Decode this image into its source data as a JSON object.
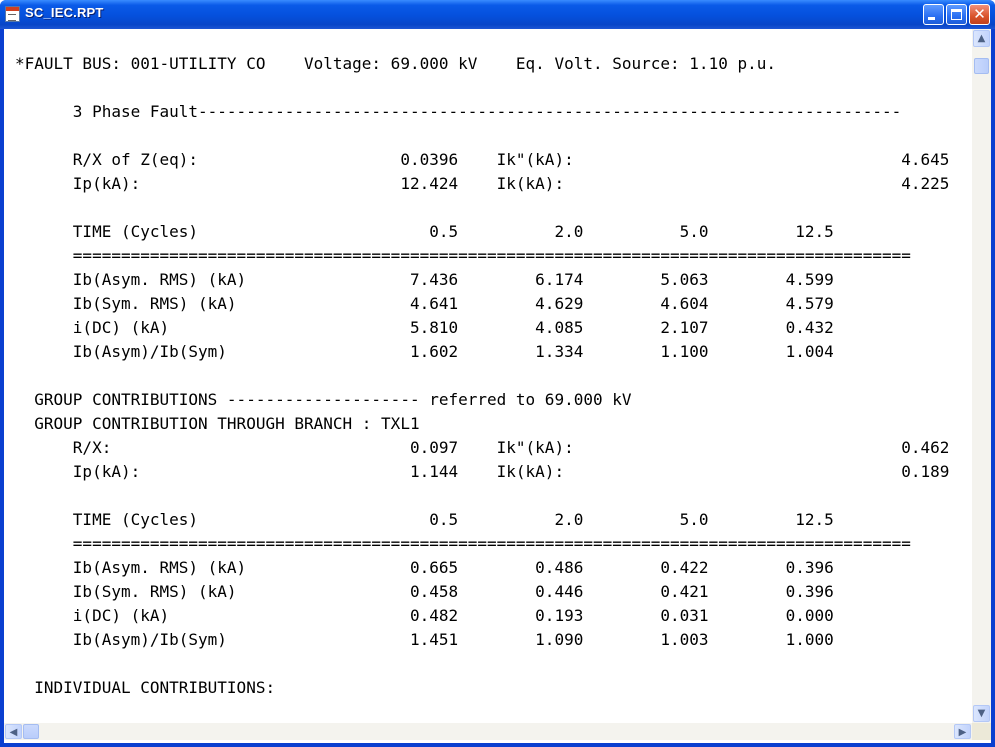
{
  "window": {
    "title": "SC_IEC.RPT",
    "icon": "notepad-icon",
    "buttons": {
      "minimize": "minimize-icon",
      "maximize": "maximize-icon",
      "close": "close-icon",
      "close_glyph": "✕"
    }
  },
  "report": {
    "lines": [
      "*FAULT BUS: 001-UTILITY CO    Voltage: 69.000 kV    Eq. Volt. Source: 1.10 p.u.",
      "",
      "      3 Phase Fault-------------------------------------------------------------------------",
      "",
      "      R/X of Z(eq):                     0.0396    Ik\"(kA):                                  4.645",
      "      Ip(kA):                           12.424    Ik(kA):                                   4.225",
      "",
      "      TIME (Cycles)                        0.5          2.0          5.0         12.5",
      "      =======================================================================================",
      "      Ib(Asym. RMS) (kA)                 7.436        6.174        5.063        4.599",
      "      Ib(Sym. RMS) (kA)                  4.641        4.629        4.604        4.579",
      "      i(DC) (kA)                         5.810        4.085        2.107        0.432",
      "      Ib(Asym)/Ib(Sym)                   1.602        1.334        1.100        1.004",
      "",
      "  GROUP CONTRIBUTIONS -------------------- referred to 69.000 kV",
      "  GROUP CONTRIBUTION THROUGH BRANCH : TXL1",
      "      R/X:                               0.097    Ik\"(kA):                                  0.462",
      "      Ip(kA):                            1.144    Ik(kA):                                   0.189",
      "",
      "      TIME (Cycles)                        0.5          2.0          5.0         12.5",
      "      =======================================================================================",
      "      Ib(Asym. RMS) (kA)                 0.665        0.486        0.422        0.396",
      "      Ib(Sym. RMS) (kA)                  0.458        0.446        0.421        0.396",
      "      i(DC) (kA)                         0.482        0.193        0.031        0.000",
      "      Ib(Asym)/Ib(Sym)                   1.451        1.090        1.003        1.000",
      "",
      "  INDIVIDUAL CONTRIBUTIONS:"
    ]
  },
  "scrollbars": {
    "vertical": {
      "up": "scroll-up-arrow-icon",
      "down": "scroll-down-arrow-icon",
      "position": 0.0,
      "up_glyph": "▲",
      "down_glyph": "▼"
    },
    "horizontal": {
      "left": "scroll-left-arrow-icon",
      "right": "scroll-right-arrow-icon",
      "position": 0.0,
      "left_glyph": "◀",
      "right_glyph": "▶"
    }
  }
}
